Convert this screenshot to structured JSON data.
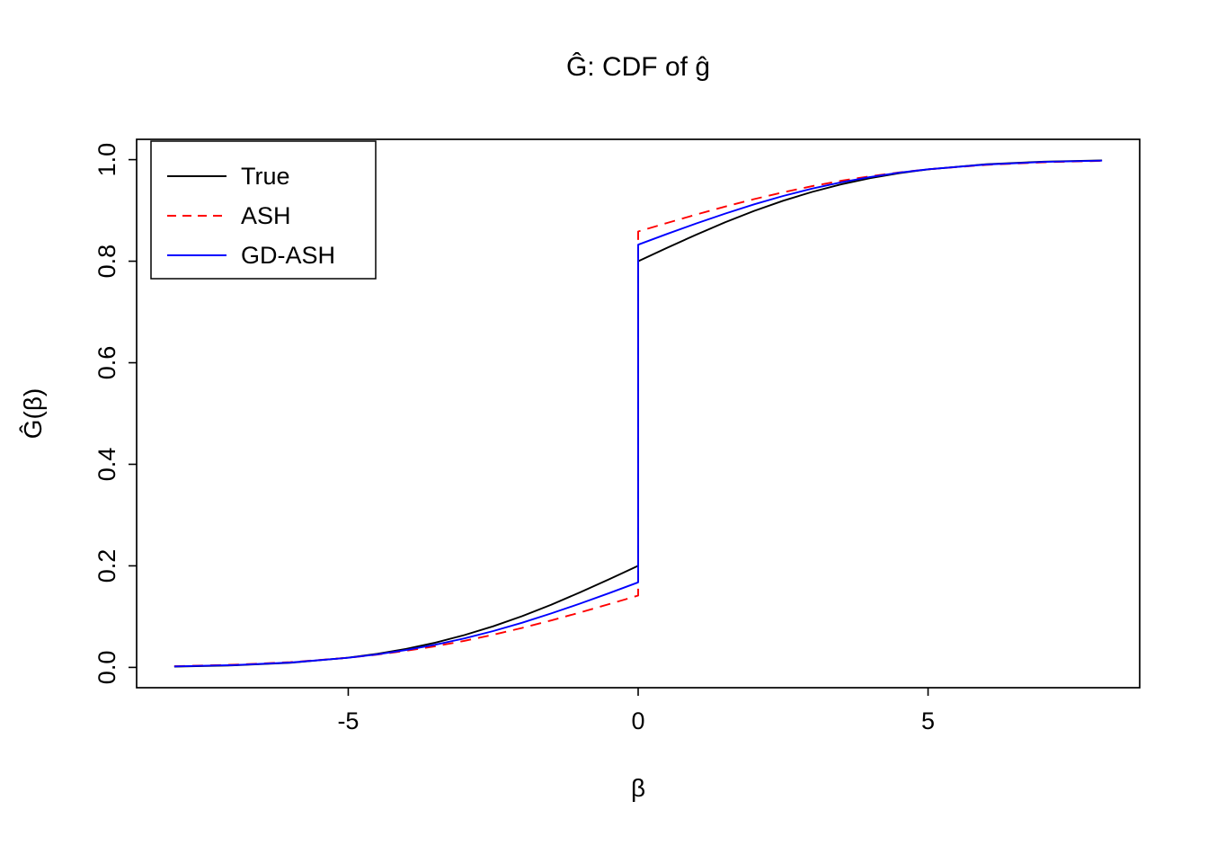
{
  "chart_data": {
    "type": "line",
    "title": "Ĝ: CDF of ĝ",
    "xlabel": "β",
    "ylabel": "Ĝ(β)",
    "xlim": [
      -8.65,
      8.65
    ],
    "ylim": [
      -0.04,
      1.04
    ],
    "grid": false,
    "legend_position": "top-left",
    "x_ticks": [
      -5,
      0,
      5
    ],
    "x_tick_labels": [
      "-5",
      "0",
      "5"
    ],
    "y_ticks": [
      0.0,
      0.2,
      0.4,
      0.6,
      0.8,
      1.0
    ],
    "y_tick_labels": [
      "0.0",
      "0.2",
      "0.4",
      "0.6",
      "0.8",
      "1.0"
    ],
    "series": [
      {
        "name": "True",
        "color": "#000000",
        "dash": "",
        "points": [
          [
            -8,
            0.0015
          ],
          [
            -7,
            0.0039
          ],
          [
            -6,
            0.0091
          ],
          [
            -5,
            0.0191
          ],
          [
            -4.5,
            0.0267
          ],
          [
            -4,
            0.0365
          ],
          [
            -3.5,
            0.0487
          ],
          [
            -3,
            0.0635
          ],
          [
            -2.5,
            0.0809
          ],
          [
            -2,
            0.101
          ],
          [
            -1.5,
            0.1234
          ],
          [
            -1,
            0.1478
          ],
          [
            -0.5,
            0.1735
          ],
          [
            0,
            0.2
          ],
          [
            0,
            0.8
          ],
          [
            0.5,
            0.8265
          ],
          [
            1,
            0.8522
          ],
          [
            1.5,
            0.8766
          ],
          [
            2,
            0.899
          ],
          [
            2.5,
            0.9191
          ],
          [
            3,
            0.9365
          ],
          [
            3.5,
            0.9513
          ],
          [
            4,
            0.9635
          ],
          [
            4.5,
            0.9733
          ],
          [
            5,
            0.9809
          ],
          [
            6,
            0.9909
          ],
          [
            7,
            0.9961
          ],
          [
            8,
            0.9985
          ]
        ]
      },
      {
        "name": "ASH",
        "color": "#ff0000",
        "dash": "12 8",
        "points": [
          [
            -8,
            0.0024
          ],
          [
            -7,
            0.0051
          ],
          [
            -6,
            0.0103
          ],
          [
            -5,
            0.019
          ],
          [
            -4.5,
            0.0252
          ],
          [
            -4,
            0.0327
          ],
          [
            -3.5,
            0.0417
          ],
          [
            -3,
            0.0522
          ],
          [
            -2.5,
            0.0642
          ],
          [
            -2,
            0.0777
          ],
          [
            -1.5,
            0.0925
          ],
          [
            -1,
            0.1082
          ],
          [
            -0.5,
            0.1247
          ],
          [
            0,
            0.1415
          ],
          [
            0,
            0.8585
          ],
          [
            0.5,
            0.8753
          ],
          [
            1,
            0.8918
          ],
          [
            1.5,
            0.9075
          ],
          [
            2,
            0.9223
          ],
          [
            2.5,
            0.9358
          ],
          [
            3,
            0.9478
          ],
          [
            3.5,
            0.9583
          ],
          [
            4,
            0.9673
          ],
          [
            4.5,
            0.9748
          ],
          [
            5,
            0.981
          ],
          [
            6,
            0.9897
          ],
          [
            7,
            0.9949
          ],
          [
            8,
            0.9977
          ]
        ]
      },
      {
        "name": "GD-ASH",
        "color": "#0000ff",
        "dash": "",
        "points": [
          [
            -8,
            0.0019
          ],
          [
            -7,
            0.0044
          ],
          [
            -6,
            0.0095
          ],
          [
            -5,
            0.0189
          ],
          [
            -4.5,
            0.0257
          ],
          [
            -4,
            0.0342
          ],
          [
            -3.5,
            0.0447
          ],
          [
            -3,
            0.0571
          ],
          [
            -2.5,
            0.0716
          ],
          [
            -2,
            0.088
          ],
          [
            -1.5,
            0.1062
          ],
          [
            -1,
            0.1258
          ],
          [
            -0.5,
            0.1463
          ],
          [
            0,
            0.1675
          ],
          [
            0,
            0.8325
          ],
          [
            0.5,
            0.8537
          ],
          [
            1,
            0.8742
          ],
          [
            1.5,
            0.8938
          ],
          [
            2,
            0.912
          ],
          [
            2.5,
            0.9284
          ],
          [
            3,
            0.9429
          ],
          [
            3.5,
            0.9553
          ],
          [
            4,
            0.9658
          ],
          [
            4.5,
            0.9743
          ],
          [
            5,
            0.9811
          ],
          [
            6,
            0.9905
          ],
          [
            7,
            0.9956
          ],
          [
            8,
            0.9981
          ]
        ]
      }
    ]
  }
}
